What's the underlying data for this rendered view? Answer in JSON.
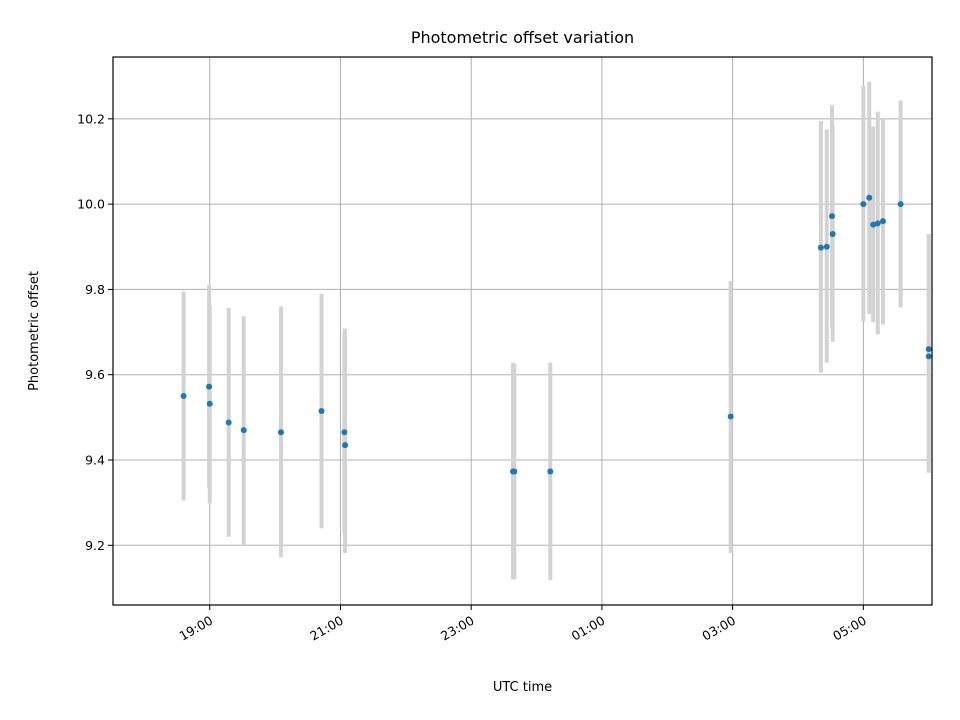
{
  "chart_data": {
    "type": "scatter",
    "title": "Photometric offset variation",
    "xlabel": "UTC time",
    "ylabel": "Photometric offset",
    "x_unit": "hours (UTC, continuing past midnight)",
    "xlim": [
      17.52,
      30.05
    ],
    "ylim": [
      9.06,
      10.345
    ],
    "x_ticks": [
      19,
      21,
      23,
      25,
      27,
      29
    ],
    "x_tick_labels": [
      "19:00",
      "21:00",
      "23:00",
      "01:00",
      "03:00",
      "05:00"
    ],
    "y_ticks": [
      9.2,
      9.4,
      9.6,
      9.8,
      10.0,
      10.2
    ],
    "y_tick_labels": [
      "9.2",
      "9.4",
      "9.6",
      "9.8",
      "10.0",
      "10.2"
    ],
    "grid": true,
    "point_color": "#1f77b4",
    "errorbar_color": "#d3d3d3",
    "series": [
      {
        "points": [
          {
            "x": 18.6,
            "y": 9.55,
            "ylo": 9.305,
            "yhi": 9.795
          },
          {
            "x": 18.99,
            "y": 9.572,
            "ylo": 9.335,
            "yhi": 9.81
          },
          {
            "x": 19.0,
            "y": 9.532,
            "ylo": 9.298,
            "yhi": 9.762
          },
          {
            "x": 19.29,
            "y": 9.488,
            "ylo": 9.22,
            "yhi": 9.757
          },
          {
            "x": 19.52,
            "y": 9.47,
            "ylo": 9.2,
            "yhi": 9.737
          },
          {
            "x": 20.09,
            "y": 9.465,
            "ylo": 9.172,
            "yhi": 9.76
          },
          {
            "x": 20.71,
            "y": 9.515,
            "ylo": 9.24,
            "yhi": 9.79
          },
          {
            "x": 21.06,
            "y": 9.465,
            "ylo": 9.23,
            "yhi": 9.7
          },
          {
            "x": 21.07,
            "y": 9.435,
            "ylo": 9.182,
            "yhi": 9.708
          },
          {
            "x": 23.64,
            "y": 9.373,
            "ylo": 9.12,
            "yhi": 9.628
          },
          {
            "x": 23.66,
            "y": 9.373,
            "ylo": 9.12,
            "yhi": 9.625
          },
          {
            "x": 24.21,
            "y": 9.373,
            "ylo": 9.118,
            "yhi": 9.628
          },
          {
            "x": 26.97,
            "y": 9.502,
            "ylo": 9.182,
            "yhi": 9.82
          },
          {
            "x": 28.35,
            "y": 9.898,
            "ylo": 9.605,
            "yhi": 10.195
          },
          {
            "x": 28.44,
            "y": 9.9,
            "ylo": 9.628,
            "yhi": 10.175
          },
          {
            "x": 28.52,
            "y": 9.972,
            "ylo": 9.71,
            "yhi": 10.232
          },
          {
            "x": 28.53,
            "y": 9.93,
            "ylo": 9.677,
            "yhi": 10.183
          },
          {
            "x": 29.0,
            "y": 10.0,
            "ylo": 9.725,
            "yhi": 10.278
          },
          {
            "x": 29.09,
            "y": 10.015,
            "ylo": 9.742,
            "yhi": 10.287
          },
          {
            "x": 29.15,
            "y": 9.952,
            "ylo": 9.723,
            "yhi": 10.182
          },
          {
            "x": 29.22,
            "y": 9.955,
            "ylo": 9.695,
            "yhi": 10.217
          },
          {
            "x": 29.3,
            "y": 9.96,
            "ylo": 9.718,
            "yhi": 10.2
          },
          {
            "x": 29.57,
            "y": 10.0,
            "ylo": 9.758,
            "yhi": 10.243
          },
          {
            "x": 30.0,
            "y": 9.66,
            "ylo": 9.39,
            "yhi": 9.93
          },
          {
            "x": 30.0,
            "y": 9.643,
            "ylo": 9.37,
            "yhi": 9.918
          }
        ]
      }
    ]
  }
}
